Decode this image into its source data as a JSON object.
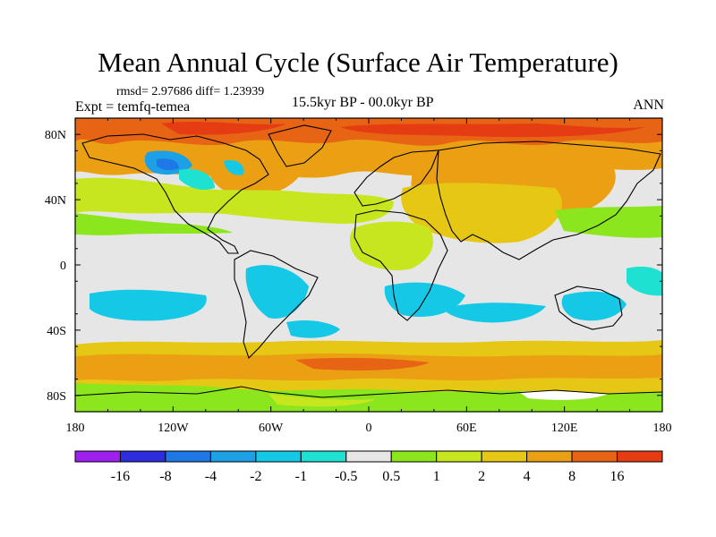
{
  "title": "Mean Annual Cycle (Surface Air Temperature)",
  "stats": "rmsd= 2.97686 diff= 1.23939",
  "experiment": "Expt = temfq-temea",
  "period": "15.5kyr BP - 00.0kyr BP",
  "season": "ANN",
  "map": {
    "lon_ticks": [
      "180",
      "120W",
      "60W",
      "0",
      "60E",
      "120E",
      "180"
    ],
    "lat_ticks": [
      "80N",
      "40N",
      "0",
      "40S",
      "80S"
    ],
    "lon_range": [
      -180,
      180
    ],
    "lat_range": [
      -90,
      90
    ],
    "background_color": "#e6e6e6"
  },
  "colorbar": {
    "colors": [
      "#9f1fef",
      "#2d2ddd",
      "#1e78e6",
      "#1ea0e6",
      "#14c8e6",
      "#1ee1d2",
      "#e6e6e6",
      "#8ce61e",
      "#c8e61e",
      "#e6c814",
      "#eba014",
      "#e66414",
      "#e63c14"
    ],
    "labels": [
      "-16",
      "-8",
      "-4",
      "-2",
      "-1",
      "-0.5",
      "0.5",
      "1",
      "2",
      "4",
      "8",
      "16"
    ]
  }
}
